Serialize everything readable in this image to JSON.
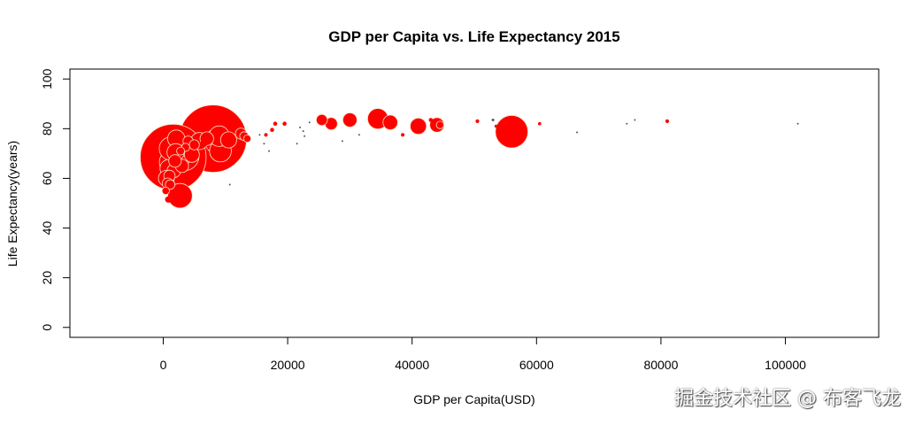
{
  "chart_data": {
    "type": "scatter",
    "title": "GDP per Capita vs. Life Expectancy 2015",
    "xlabel": "GDP per Capita(USD)",
    "ylabel": "Life Expectancy(years)",
    "xlim": [
      -15000,
      115000
    ],
    "ylim": [
      -4,
      104
    ],
    "xticks": [
      0,
      20000,
      40000,
      60000,
      80000,
      100000
    ],
    "xtick_labels": [
      "0",
      "20000",
      "40000",
      "60000",
      "80000",
      "100000"
    ],
    "yticks": [
      0,
      20,
      40,
      60,
      80,
      100
    ],
    "ytick_labels": [
      "0",
      "20",
      "40",
      "60",
      "80",
      "100"
    ],
    "grid": false,
    "legend": "none",
    "marker_color": "#ff0000",
    "marker_edge_color": "#f5e6c8",
    "size_encoding": "population (bubble area)",
    "points": [
      {
        "x": 8000,
        "y": 76.0,
        "size": 1370
      },
      {
        "x": 1600,
        "y": 68.5,
        "size": 1310
      },
      {
        "x": 56000,
        "y": 78.8,
        "size": 320
      },
      {
        "x": 3400,
        "y": 69.0,
        "size": 258
      },
      {
        "x": 8800,
        "y": 75.0,
        "size": 205
      },
      {
        "x": 1400,
        "y": 66.5,
        "size": 190
      },
      {
        "x": 2700,
        "y": 53.0,
        "size": 182
      },
      {
        "x": 1200,
        "y": 72.0,
        "size": 161
      },
      {
        "x": 9200,
        "y": 71.0,
        "size": 144
      },
      {
        "x": 34500,
        "y": 84.0,
        "size": 127
      },
      {
        "x": 9000,
        "y": 77.0,
        "size": 127
      },
      {
        "x": 2900,
        "y": 68.5,
        "size": 102
      },
      {
        "x": 2100,
        "y": 76.0,
        "size": 92
      },
      {
        "x": 900,
        "y": 64.0,
        "size": 95
      },
      {
        "x": 10500,
        "y": 75.5,
        "size": 79
      },
      {
        "x": 41000,
        "y": 81.0,
        "size": 81
      },
      {
        "x": 5800,
        "y": 75.0,
        "size": 90
      },
      {
        "x": 2000,
        "y": 70.5,
        "size": 92
      },
      {
        "x": 4600,
        "y": 69.5,
        "size": 68
      },
      {
        "x": 36500,
        "y": 82.5,
        "size": 66
      },
      {
        "x": 44000,
        "y": 81.5,
        "size": 64
      },
      {
        "x": 30000,
        "y": 83.5,
        "size": 60
      },
      {
        "x": 7000,
        "y": 76.0,
        "size": 56
      },
      {
        "x": 27000,
        "y": 82.0,
        "size": 47
      },
      {
        "x": 1700,
        "y": 63.0,
        "size": 56
      },
      {
        "x": 3000,
        "y": 65.0,
        "size": 53
      },
      {
        "x": 500,
        "y": 60.0,
        "size": 77
      },
      {
        "x": 1900,
        "y": 67.0,
        "size": 48
      },
      {
        "x": 1000,
        "y": 61.0,
        "size": 39
      },
      {
        "x": 25500,
        "y": 83.5,
        "size": 38
      },
      {
        "x": 12500,
        "y": 78.0,
        "size": 38
      },
      {
        "x": 700,
        "y": 58.0,
        "size": 35
      },
      {
        "x": 1100,
        "y": 57.5,
        "size": 28
      },
      {
        "x": 13000,
        "y": 77.0,
        "size": 24
      },
      {
        "x": 4000,
        "y": 75.0,
        "size": 32
      },
      {
        "x": 5000,
        "y": 73.5,
        "size": 31
      },
      {
        "x": 400,
        "y": 55.0,
        "size": 17
      },
      {
        "x": 13500,
        "y": 76.0,
        "size": 17
      },
      {
        "x": 6500,
        "y": 74.0,
        "size": 15
      },
      {
        "x": 3600,
        "y": 72.5,
        "size": 20
      },
      {
        "x": 800,
        "y": 51.5,
        "size": 12
      },
      {
        "x": 2800,
        "y": 71.0,
        "size": 19
      },
      {
        "x": 44500,
        "y": 81.5,
        "size": 17
      },
      {
        "x": 43000,
        "y": 83.5,
        "size": 5
      },
      {
        "x": 18000,
        "y": 82.0,
        "size": 5
      },
      {
        "x": 17500,
        "y": 79.5,
        "size": 5
      },
      {
        "x": 19500,
        "y": 82.0,
        "size": 5
      },
      {
        "x": 16500,
        "y": 77.5,
        "size": 4
      },
      {
        "x": 38500,
        "y": 77.5,
        "size": 4
      },
      {
        "x": 50500,
        "y": 83.0,
        "size": 4
      },
      {
        "x": 53500,
        "y": 81.0,
        "size": 3
      },
      {
        "x": 53000,
        "y": 83.5,
        "size": 2
      },
      {
        "x": 60500,
        "y": 82.0,
        "size": 3
      },
      {
        "x": 81000,
        "y": 83.0,
        "size": 4
      },
      {
        "x": 74500,
        "y": 82.0,
        "size": 1
      },
      {
        "x": 75800,
        "y": 83.5,
        "size": 1
      },
      {
        "x": 66500,
        "y": 78.5,
        "size": 1
      },
      {
        "x": 102000,
        "y": 82.0,
        "size": 1
      },
      {
        "x": 28800,
        "y": 75.0,
        "size": 1
      },
      {
        "x": 31500,
        "y": 77.5,
        "size": 1
      },
      {
        "x": 23500,
        "y": 82.5,
        "size": 1
      },
      {
        "x": 22500,
        "y": 79.0,
        "size": 1
      },
      {
        "x": 22700,
        "y": 77.0,
        "size": 1
      },
      {
        "x": 22000,
        "y": 80.5,
        "size": 1
      },
      {
        "x": 21500,
        "y": 74.0,
        "size": 1
      },
      {
        "x": 16200,
        "y": 74.0,
        "size": 1
      },
      {
        "x": 15500,
        "y": 77.5,
        "size": 1
      },
      {
        "x": 17000,
        "y": 71.0,
        "size": 1
      },
      {
        "x": 10700,
        "y": 57.5,
        "size": 1
      }
    ]
  },
  "watermark": "掘金技术社区 @ 布客飞龙"
}
